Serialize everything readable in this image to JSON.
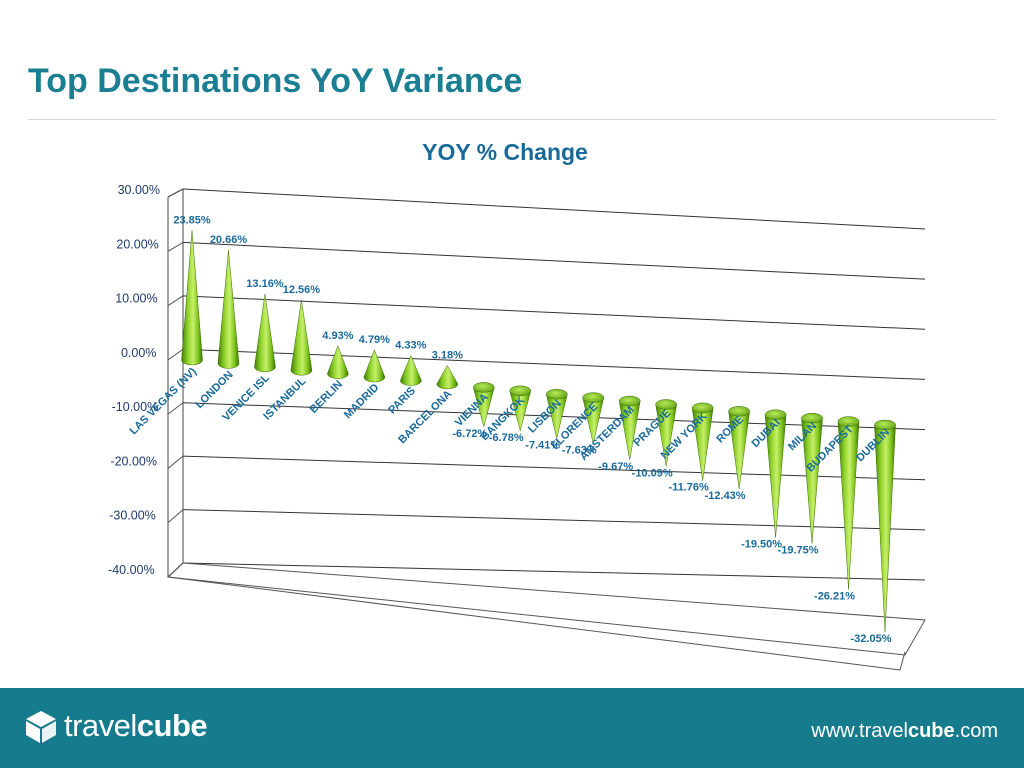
{
  "slide": {
    "title": "Top Destinations YoY Variance"
  },
  "chart_data": {
    "type": "bar",
    "style": "3d-cone",
    "title": "YOY % Change",
    "xlabel": "",
    "ylabel": "",
    "ylim": [
      -40,
      30
    ],
    "ticks": [
      "30.00%",
      "20.00%",
      "10.00%",
      "0.00%",
      "-10.00%",
      "-20.00%",
      "-30.00%",
      "-40.00%"
    ],
    "grid": true,
    "legend": "none",
    "bar_color": "#7cc21a",
    "categories": [
      "LAS VEGAS (NV)",
      "LONDON",
      "VENICE ISL",
      "ISTANBUL",
      "BERLIN",
      "MADRID",
      "PARIS",
      "BARCELONA",
      "VIENNA",
      "BANGKOK",
      "LISBON",
      "FLORENCE",
      "AMSTERDAM",
      "PRAGUE",
      "NEW YORK",
      "ROME",
      "DUBAI",
      "MILAN",
      "BUDAPEST",
      "DUBLIN"
    ],
    "values": [
      23.85,
      20.66,
      13.16,
      12.56,
      4.93,
      4.79,
      4.33,
      3.18,
      -6.72,
      -6.78,
      -7.41,
      -7.63,
      -9.67,
      -10.09,
      -11.76,
      -12.43,
      -19.5,
      -19.75,
      -26.21,
      -32.05
    ],
    "data_labels": [
      "23.85%",
      "20.66%",
      "13.16%",
      "12.56%",
      "4.93%",
      "4.79%",
      "4.33%",
      "3.18%",
      "-6.72%",
      "-6.78%",
      "-7.41%",
      "-7.63%",
      "-9.67%",
      "-10.09%",
      "-11.76%",
      "-12.43%",
      "-19.50%",
      "-19.75%",
      "-26.21%",
      "-32.05%"
    ]
  },
  "footer": {
    "logo_light": "travel",
    "logo_bold": "cube",
    "url_prefix": "www.travel",
    "url_bold": "cube",
    "url_suffix": ".com"
  }
}
